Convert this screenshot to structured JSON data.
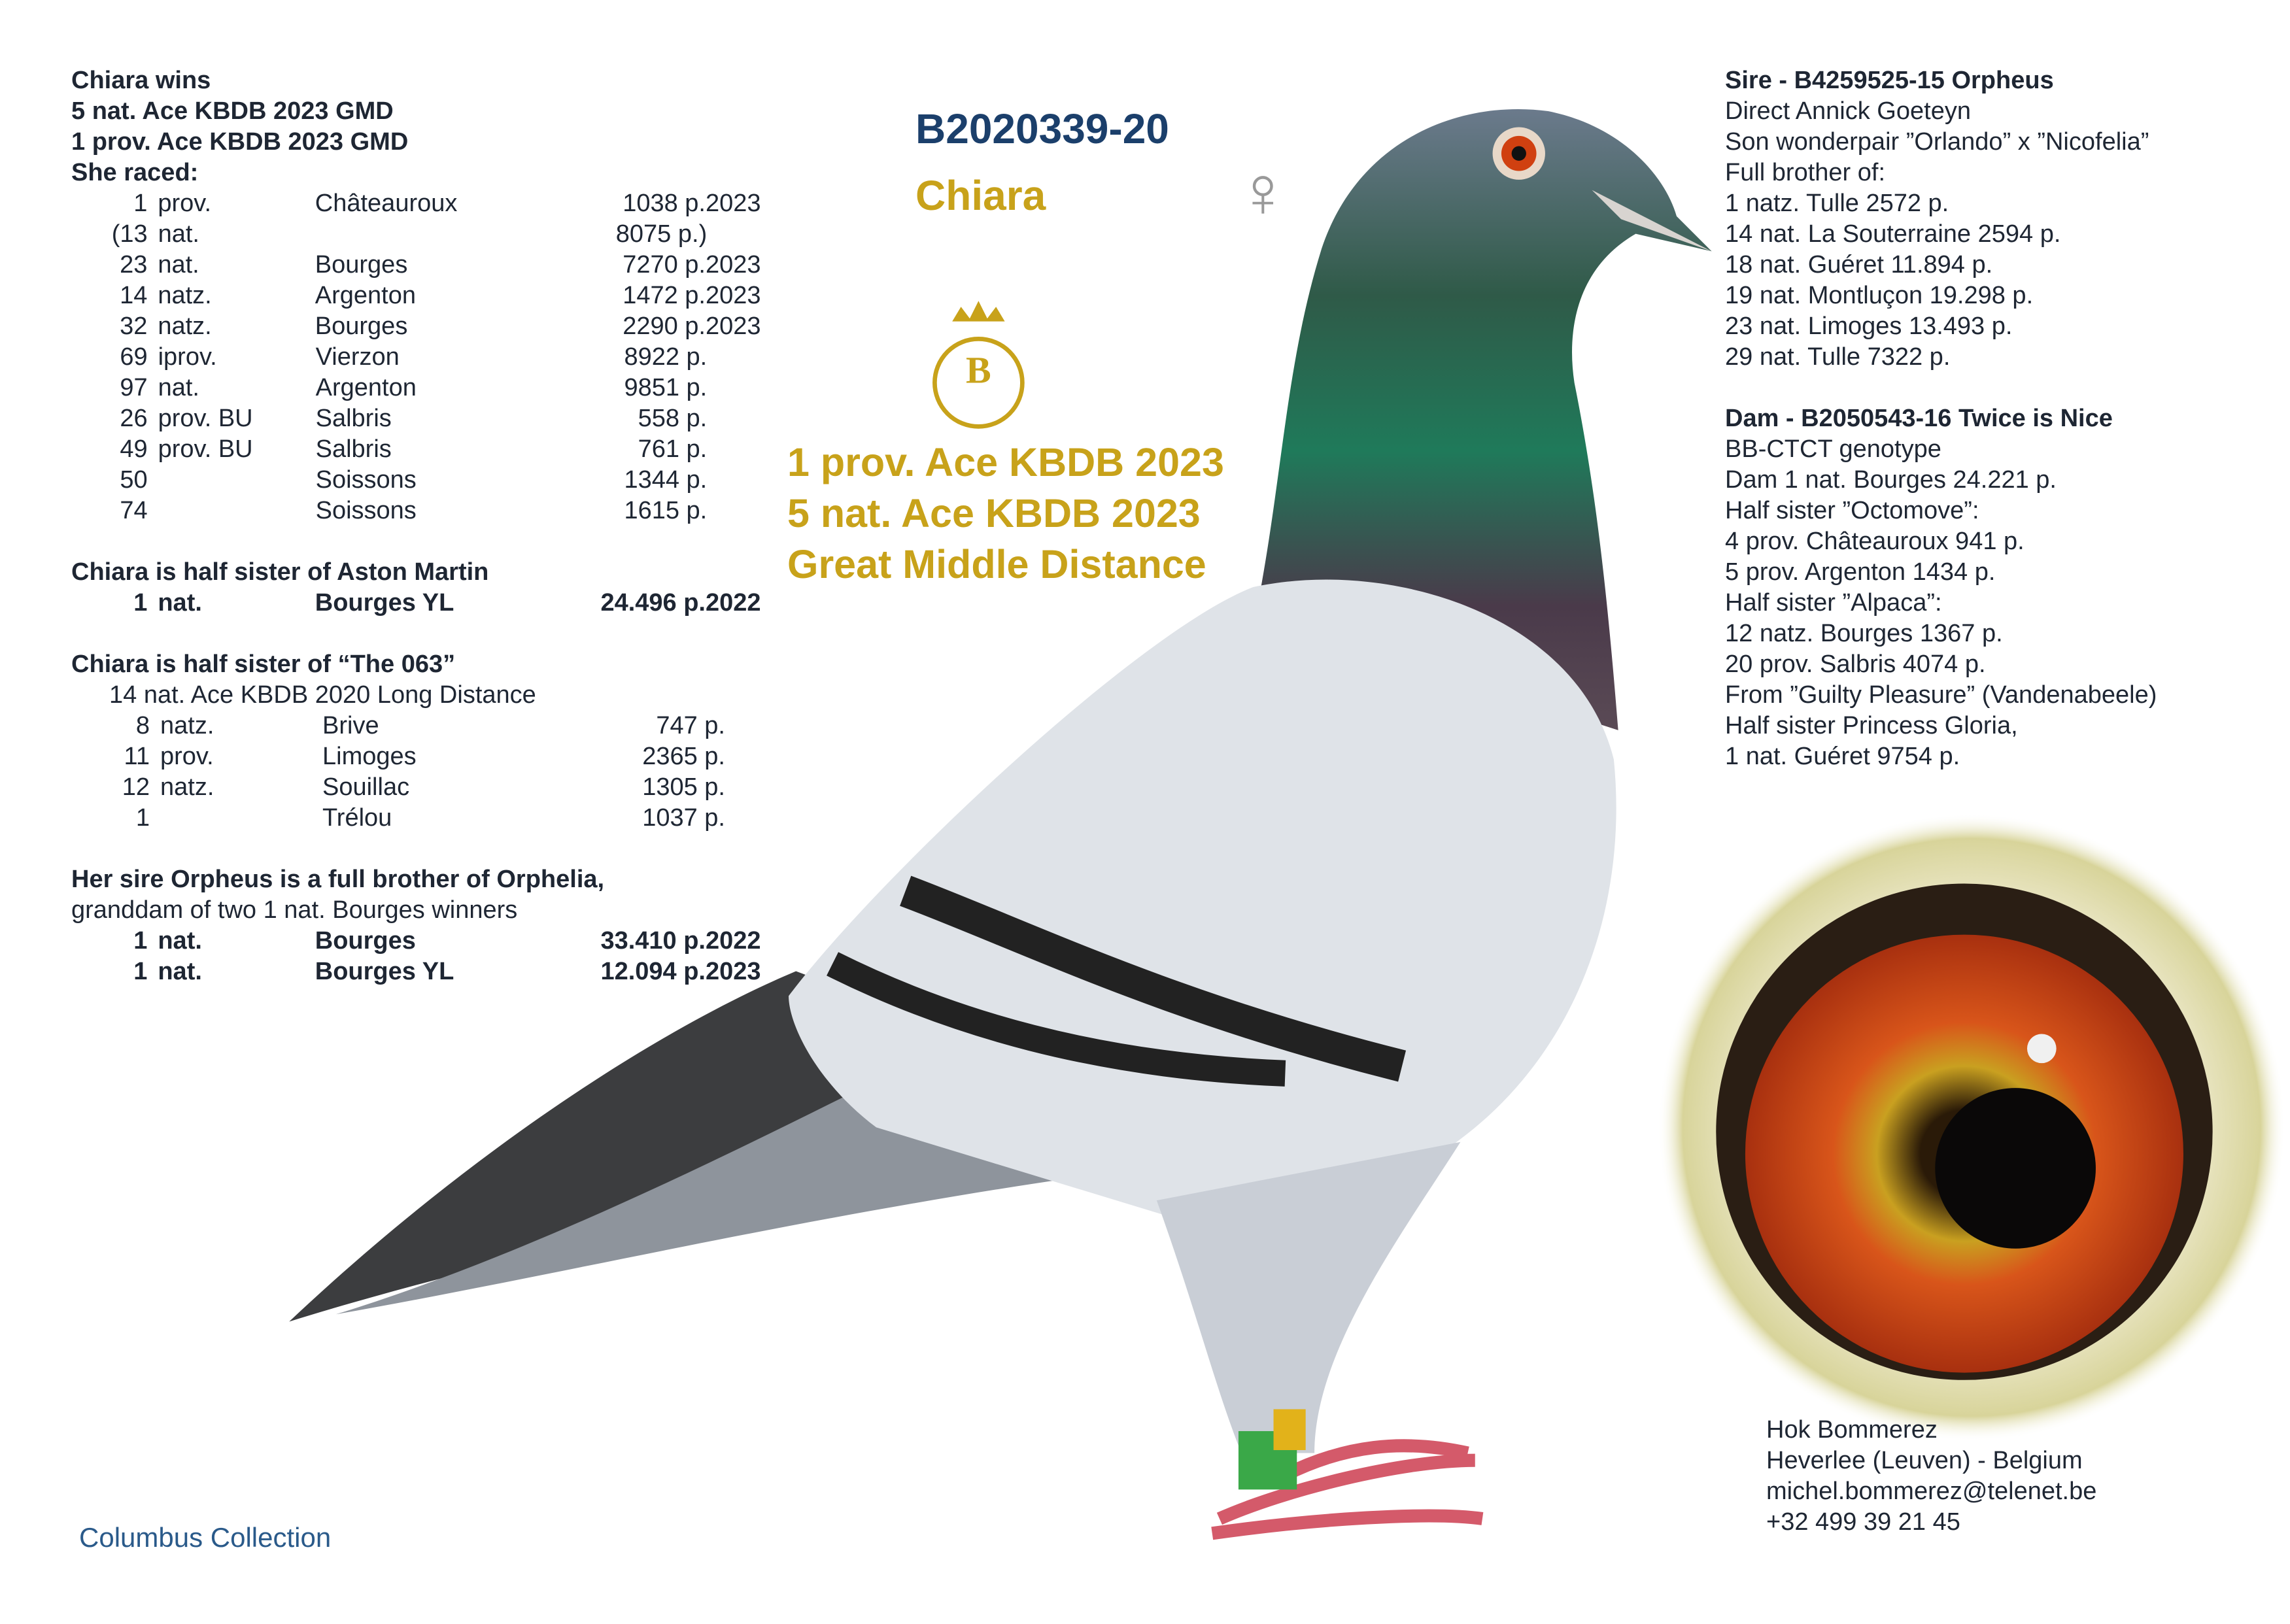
{
  "left": {
    "header": [
      "Chiara wins",
      "5 nat. Ace KBDB 2023 GMD",
      "1 prov. Ace KBDB 2023 GMD",
      "She raced:"
    ],
    "raced": [
      {
        "n": "1",
        "type": "prov.",
        "place": "Châteauroux",
        "points": "1038 p.",
        "year": "2023"
      },
      {
        "n": "(13",
        "type": "nat.",
        "place": "",
        "points": "8075 p.)",
        "year": ""
      },
      {
        "n": "23",
        "type": "nat.",
        "place": "Bourges",
        "points": "7270 p.",
        "year": "2023"
      },
      {
        "n": "14",
        "type": "natz.",
        "place": "Argenton",
        "points": "1472 p.",
        "year": "2023"
      },
      {
        "n": "32",
        "type": "natz.",
        "place": "Bourges",
        "points": "2290 p.",
        "year": "2023"
      },
      {
        "n": "69",
        "type": "iprov.",
        "place": "Vierzon",
        "points": "8922 p.",
        "year": ""
      },
      {
        "n": "97",
        "type": "nat.",
        "place": "Argenton",
        "points": "9851 p.",
        "year": ""
      },
      {
        "n": "26",
        "type": "prov. BU",
        "place": "Salbris",
        "points": "558 p.",
        "year": ""
      },
      {
        "n": "49",
        "type": "prov. BU",
        "place": "Salbris",
        "points": "761 p.",
        "year": ""
      },
      {
        "n": "50",
        "type": "",
        "place": "Soissons",
        "points": "1344 p.",
        "year": ""
      },
      {
        "n": "74",
        "type": "",
        "place": "Soissons",
        "points": "1615 p.",
        "year": ""
      }
    ],
    "aston": {
      "heading": "Chiara is half sister of Aston Martin",
      "row": {
        "n": "1",
        "type": "nat.",
        "place": "Bourges YL",
        "points": "24.496 p.",
        "year": "2022"
      }
    },
    "the063": {
      "heading": "Chiara is half sister of “The 063”",
      "sub": "14  nat. Ace KBDB 2020 Long Distance",
      "rows": [
        {
          "n": "8",
          "type": "natz.",
          "place": "Brive",
          "points": "747 p."
        },
        {
          "n": "11",
          "type": "prov.",
          "place": "Limoges",
          "points": "2365 p."
        },
        {
          "n": "12",
          "type": "natz.",
          "place": "Souillac",
          "points": "1305 p."
        },
        {
          "n": "1",
          "type": "",
          "place": "Trélou",
          "points": "1037 p."
        }
      ]
    },
    "sire_note": {
      "heading": "Her sire Orpheus is a full brother of Orphelia,",
      "sub": "granddam of two 1 nat. Bourges winners",
      "rows": [
        {
          "n": "1",
          "type": "nat.",
          "place": "Bourges",
          "points": "33.410 p.",
          "year": "2022"
        },
        {
          "n": "1",
          "type": "nat.",
          "place": "Bourges YL",
          "points": "12.094 p.",
          "year": "2023"
        }
      ]
    }
  },
  "center": {
    "ring": "B2020339-20",
    "name": "Chiara",
    "sex_symbol": "♀",
    "logo_letter": "B",
    "achievements": [
      "1 prov. Ace KBDB 2023",
      "5 nat. Ace KBDB 2023",
      "Great Middle Distance"
    ]
  },
  "right": {
    "sire": {
      "heading": "Sire - B4259525-15 Orpheus",
      "lines": [
        "Direct Annick Goeteyn",
        "Son wonderpair ”Orlando” x ”Nicofelia”",
        "Full brother  of:",
        "1 natz. Tulle 2572 p.",
        "14 nat. La Souterraine 2594 p.",
        "18 nat. Guéret 11.894 p.",
        "19 nat. Montluçon 19.298 p.",
        "23 nat. Limoges 13.493 p.",
        "29 nat. Tulle 7322 p."
      ]
    },
    "dam": {
      "heading": "Dam - B2050543-16 Twice is Nice",
      "lines": [
        "BB-CTCT genotype",
        "Dam 1 nat. Bourges 24.221 p.",
        "Half sister ”Octomove”:",
        "4 prov. Châteauroux 941 p.",
        "5 prov. Argenton 1434 p.",
        "Half sister ”Alpaca”:",
        "12 natz. Bourges 1367 p.",
        "20 prov. Salbris 4074 p.",
        "From ”Guilty Pleasure” (Vandenabeele)",
        "Half sister Princess Gloria,",
        "1 nat. Guéret 9754 p."
      ]
    }
  },
  "contact": [
    "Hok Bommerez",
    "Heverlee (Leuven) - Belgium",
    "michel.bommerez@telenet.be",
    "+32 499 39 21 45"
  ],
  "footer": "Columbus Collection",
  "colors": {
    "navy": "#1b3f6b",
    "gold": "#c8a21a",
    "text": "#1e2633"
  }
}
